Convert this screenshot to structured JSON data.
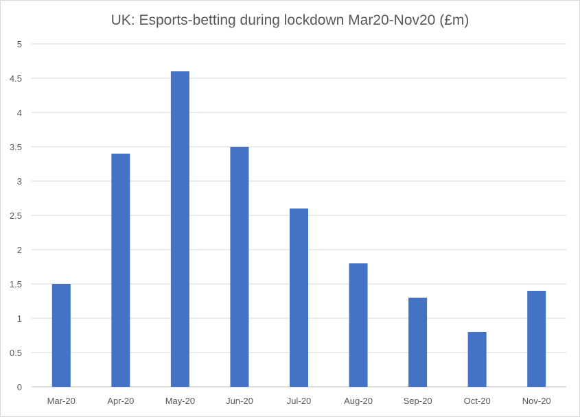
{
  "chart_data": {
    "type": "bar",
    "title": "UK: Esports-betting during lockdown Mar20-Nov20 (£m)",
    "categories": [
      "Mar-20",
      "Apr-20",
      "May-20",
      "Jun-20",
      "Jul-20",
      "Aug-20",
      "Sep-20",
      "Oct-20",
      "Nov-20"
    ],
    "values": [
      1.5,
      3.4,
      4.6,
      3.5,
      2.6,
      1.8,
      1.3,
      0.8,
      1.4
    ],
    "ylim": [
      0,
      5
    ],
    "yticks": [
      "0",
      "0.5",
      "1",
      "1.5",
      "2",
      "2.5",
      "3",
      "3.5",
      "4",
      "4.5",
      "5"
    ],
    "grid": true,
    "legend": "none",
    "bar_color": "#4472c4",
    "grid_color": "#d9d9d9"
  }
}
